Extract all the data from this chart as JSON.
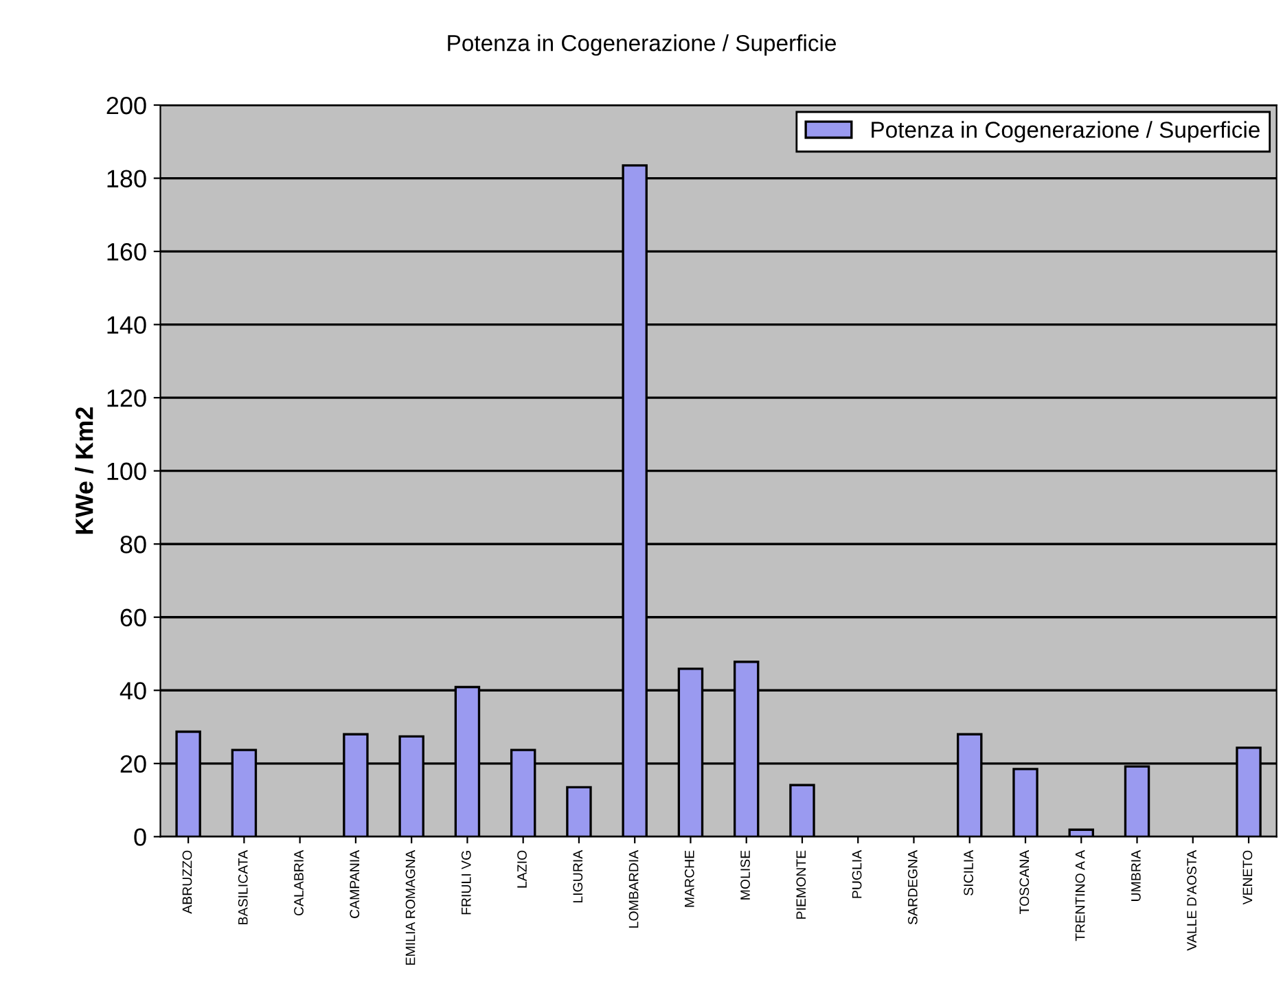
{
  "chart_data": {
    "type": "bar",
    "title": "Potenza in Cogenerazione / Superficie",
    "ylabel": "KWe / Km2",
    "categories": [
      "ABRUZZO",
      "BASILICATA",
      "CALABRIA",
      "CAMPANIA",
      "EMILIA ROMAGNA",
      "FRIULI VG",
      "LAZIO",
      "LIGURIA",
      "LOMBARDIA",
      "MARCHE",
      "MOLISE",
      "PIEMONTE",
      "PUGLIA",
      "SARDEGNA",
      "SICILIA",
      "TOSCANA",
      "TRENTINO A A",
      "UMBRIA",
      "VALLE D'AOSTA",
      "VENETO"
    ],
    "series": [
      {
        "name": "Potenza in Cogenerazione / Superficie",
        "color": "#9a9af0",
        "values": [
          28.7,
          23.7,
          null,
          28,
          27.4,
          40.9,
          23.7,
          13.5,
          183.5,
          45.9,
          47.8,
          14.1,
          null,
          null,
          28,
          18.5,
          1.9,
          19.2,
          null,
          24.3
        ]
      }
    ],
    "ylim": [
      0,
      200
    ],
    "yticks": [
      0,
      20,
      40,
      60,
      80,
      100,
      120,
      140,
      160,
      180,
      200
    ],
    "grid": "y",
    "legend": "top right"
  }
}
